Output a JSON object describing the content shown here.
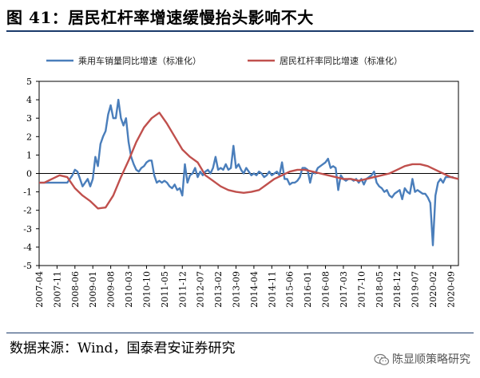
{
  "figure": {
    "title": "图 41：居民杠杆率增速缓慢抬头影响不大",
    "source": "数据来源：Wind，国泰君安证券研究",
    "watermark": "陈显顺策略研究",
    "wechat_icon": "wechat-icon"
  },
  "chart_data": {
    "type": "line",
    "title": "",
    "xlabel": "",
    "ylabel": "",
    "ylim": [
      -5,
      5
    ],
    "yticks": [
      5,
      4,
      3,
      2,
      1,
      0,
      -1,
      -2,
      -3,
      -4,
      -5
    ],
    "xlim": [
      "2007-04",
      "2020-12"
    ],
    "xticks": [
      "2007-04",
      "2007-11",
      "2008-06",
      "2009-01",
      "2009-08",
      "2010-03",
      "2010-10",
      "2011-05",
      "2011-12",
      "2012-07",
      "2013-02",
      "2013-09",
      "2014-04",
      "2014-11",
      "2015-06",
      "2016-01",
      "2016-08",
      "2017-03",
      "2017-10",
      "2018-05",
      "2018-12",
      "2019-07",
      "2020-02",
      "2020-09"
    ],
    "grid": false,
    "legend": "top",
    "series": [
      {
        "name": "乘用车销量同比增速（标准化）",
        "color": "#4a7ebb",
        "points": [
          [
            "2007-04",
            -0.5
          ],
          [
            "2007-08",
            -0.5
          ],
          [
            "2007-12",
            -0.5
          ],
          [
            "2008-03",
            -0.5
          ],
          [
            "2008-05",
            -0.1
          ],
          [
            "2008-06",
            0.2
          ],
          [
            "2008-07",
            0.1
          ],
          [
            "2008-08",
            -0.3
          ],
          [
            "2008-09",
            -0.7
          ],
          [
            "2008-10",
            -0.5
          ],
          [
            "2008-11",
            -0.3
          ],
          [
            "2008-12",
            -0.7
          ],
          [
            "2009-01",
            -0.3
          ],
          [
            "2009-02",
            0.9
          ],
          [
            "2009-03",
            0.4
          ],
          [
            "2009-04",
            1.6
          ],
          [
            "2009-05",
            2.0
          ],
          [
            "2009-06",
            2.3
          ],
          [
            "2009-07",
            3.2
          ],
          [
            "2009-08",
            3.7
          ],
          [
            "2009-09",
            3.0
          ],
          [
            "2009-10",
            3.0
          ],
          [
            "2009-11",
            4.0
          ],
          [
            "2009-12",
            3.0
          ],
          [
            "2010-01",
            2.6
          ],
          [
            "2010-02",
            3.0
          ],
          [
            "2010-03",
            1.7
          ],
          [
            "2010-04",
            0.9
          ],
          [
            "2010-05",
            0.5
          ],
          [
            "2010-06",
            0.2
          ],
          [
            "2010-07",
            0.1
          ],
          [
            "2010-08",
            0.3
          ],
          [
            "2010-09",
            0.4
          ],
          [
            "2010-10",
            0.6
          ],
          [
            "2010-11",
            0.7
          ],
          [
            "2010-12",
            0.7
          ],
          [
            "2011-01",
            -0.1
          ],
          [
            "2011-02",
            -0.5
          ],
          [
            "2011-03",
            -0.4
          ],
          [
            "2011-04",
            -0.5
          ],
          [
            "2011-05",
            -0.4
          ],
          [
            "2011-06",
            -0.5
          ],
          [
            "2011-07",
            -0.7
          ],
          [
            "2011-08",
            -0.8
          ],
          [
            "2011-09",
            -0.6
          ],
          [
            "2011-10",
            -0.9
          ],
          [
            "2011-11",
            -0.8
          ],
          [
            "2011-12",
            -1.2
          ],
          [
            "2012-01",
            0.5
          ],
          [
            "2012-02",
            -0.5
          ],
          [
            "2012-03",
            -0.1
          ],
          [
            "2012-04",
            0.0
          ],
          [
            "2012-05",
            0.3
          ],
          [
            "2012-06",
            -0.2
          ],
          [
            "2012-07",
            0.1
          ],
          [
            "2012-08",
            -0.1
          ],
          [
            "2012-09",
            0.1
          ],
          [
            "2012-10",
            0.2
          ],
          [
            "2012-11",
            0.0
          ],
          [
            "2012-12",
            0.3
          ],
          [
            "2013-01",
            0.9
          ],
          [
            "2013-02",
            0.2
          ],
          [
            "2013-03",
            0.3
          ],
          [
            "2013-04",
            0.2
          ],
          [
            "2013-05",
            0.5
          ],
          [
            "2013-06",
            0.2
          ],
          [
            "2013-07",
            0.3
          ],
          [
            "2013-08",
            1.5
          ],
          [
            "2013-09",
            0.3
          ],
          [
            "2013-10",
            0.5
          ],
          [
            "2013-11",
            0.2
          ],
          [
            "2013-12",
            0.0
          ],
          [
            "2014-01",
            0.3
          ],
          [
            "2014-02",
            0.1
          ],
          [
            "2014-03",
            -0.1
          ],
          [
            "2014-04",
            0.0
          ],
          [
            "2014-05",
            -0.1
          ],
          [
            "2014-06",
            0.1
          ],
          [
            "2014-07",
            0.0
          ],
          [
            "2014-08",
            -0.2
          ],
          [
            "2014-09",
            -0.1
          ],
          [
            "2014-10",
            0.1
          ],
          [
            "2014-11",
            -0.1
          ],
          [
            "2014-12",
            0.0
          ],
          [
            "2015-01",
            0.1
          ],
          [
            "2015-02",
            -0.1
          ],
          [
            "2015-03",
            0.6
          ],
          [
            "2015-04",
            -0.3
          ],
          [
            "2015-05",
            -0.3
          ],
          [
            "2015-06",
            -0.6
          ],
          [
            "2015-07",
            -0.5
          ],
          [
            "2015-08",
            -0.5
          ],
          [
            "2015-09",
            -0.4
          ],
          [
            "2015-10",
            -0.2
          ],
          [
            "2015-11",
            0.3
          ],
          [
            "2015-12",
            0.3
          ],
          [
            "2016-01",
            0.2
          ],
          [
            "2016-02",
            -0.5
          ],
          [
            "2016-03",
            0.1
          ],
          [
            "2016-04",
            0.0
          ],
          [
            "2016-05",
            0.3
          ],
          [
            "2016-06",
            0.4
          ],
          [
            "2016-07",
            0.5
          ],
          [
            "2016-08",
            0.6
          ],
          [
            "2016-09",
            0.8
          ],
          [
            "2016-10",
            0.3
          ],
          [
            "2016-11",
            0.4
          ],
          [
            "2016-12",
            0.3
          ],
          [
            "2017-01",
            -0.9
          ],
          [
            "2017-02",
            -0.1
          ],
          [
            "2017-03",
            -0.3
          ],
          [
            "2017-04",
            -0.4
          ],
          [
            "2017-05",
            -0.3
          ],
          [
            "2017-06",
            -0.3
          ],
          [
            "2017-07",
            -0.4
          ],
          [
            "2017-08",
            -0.3
          ],
          [
            "2017-09",
            -0.5
          ],
          [
            "2017-10",
            -0.3
          ],
          [
            "2017-11",
            -0.6
          ],
          [
            "2017-12",
            -0.3
          ],
          [
            "2018-01",
            -0.2
          ],
          [
            "2018-02",
            -0.1
          ],
          [
            "2018-03",
            0.1
          ],
          [
            "2018-04",
            -0.5
          ],
          [
            "2018-05",
            -0.7
          ],
          [
            "2018-06",
            -0.8
          ],
          [
            "2018-07",
            -1.0
          ],
          [
            "2018-08",
            -0.9
          ],
          [
            "2018-09",
            -1.2
          ],
          [
            "2018-10",
            -1.3
          ],
          [
            "2018-11",
            -1.1
          ],
          [
            "2018-12",
            -1.0
          ],
          [
            "2019-01",
            -0.9
          ],
          [
            "2019-02",
            -1.4
          ],
          [
            "2019-03",
            -0.8
          ],
          [
            "2019-04",
            -1.0
          ],
          [
            "2019-05",
            -1.1
          ],
          [
            "2019-06",
            -0.3
          ],
          [
            "2019-07",
            -1.0
          ],
          [
            "2019-08",
            -0.9
          ],
          [
            "2019-09",
            -1.0
          ],
          [
            "2019-10",
            -1.1
          ],
          [
            "2019-11",
            -1.1
          ],
          [
            "2019-12",
            -1.3
          ],
          [
            "2020-01",
            -1.6
          ],
          [
            "2020-02",
            -3.9
          ],
          [
            "2020-03",
            -1.2
          ],
          [
            "2020-04",
            -0.5
          ],
          [
            "2020-05",
            -0.3
          ],
          [
            "2020-06",
            -0.5
          ],
          [
            "2020-07",
            -0.2
          ],
          [
            "2020-08",
            -0.2
          ],
          [
            "2020-09",
            -0.2
          ],
          [
            "2020-10",
            -0.2
          ]
        ]
      },
      {
        "name": "居民杠杆率同比增速（标准化）",
        "color": "#c0504d",
        "points": [
          [
            "2007-04",
            -0.5
          ],
          [
            "2007-06",
            -0.5
          ],
          [
            "2007-09",
            -0.3
          ],
          [
            "2007-12",
            -0.1
          ],
          [
            "2008-03",
            -0.2
          ],
          [
            "2008-06",
            -0.8
          ],
          [
            "2008-09",
            -1.2
          ],
          [
            "2008-12",
            -1.5
          ],
          [
            "2009-03",
            -1.9
          ],
          [
            "2009-06",
            -1.85
          ],
          [
            "2009-09",
            -1.2
          ],
          [
            "2009-12",
            -0.2
          ],
          [
            "2010-03",
            0.7
          ],
          [
            "2010-06",
            1.7
          ],
          [
            "2010-09",
            2.5
          ],
          [
            "2010-12",
            3.0
          ],
          [
            "2011-03",
            3.3
          ],
          [
            "2011-06",
            2.7
          ],
          [
            "2011-09",
            2.0
          ],
          [
            "2011-12",
            1.3
          ],
          [
            "2012-03",
            0.9
          ],
          [
            "2012-06",
            0.6
          ],
          [
            "2012-09",
            -0.1
          ],
          [
            "2012-12",
            -0.4
          ],
          [
            "2013-03",
            -0.7
          ],
          [
            "2013-06",
            -0.9
          ],
          [
            "2013-09",
            -1.0
          ],
          [
            "2013-12",
            -1.05
          ],
          [
            "2014-03",
            -1.0
          ],
          [
            "2014-06",
            -0.9
          ],
          [
            "2014-09",
            -0.6
          ],
          [
            "2014-12",
            -0.3
          ],
          [
            "2015-03",
            -0.1
          ],
          [
            "2015-06",
            0.1
          ],
          [
            "2015-09",
            0.2
          ],
          [
            "2015-12",
            0.2
          ],
          [
            "2016-03",
            0.1
          ],
          [
            "2016-06",
            0.0
          ],
          [
            "2016-09",
            -0.1
          ],
          [
            "2016-12",
            -0.2
          ],
          [
            "2017-03",
            -0.3
          ],
          [
            "2017-06",
            -0.3
          ],
          [
            "2017-09",
            -0.4
          ],
          [
            "2017-12",
            -0.3
          ],
          [
            "2018-03",
            -0.2
          ],
          [
            "2018-06",
            -0.1
          ],
          [
            "2018-09",
            0.0
          ],
          [
            "2018-12",
            0.2
          ],
          [
            "2019-03",
            0.4
          ],
          [
            "2019-06",
            0.5
          ],
          [
            "2019-09",
            0.5
          ],
          [
            "2019-12",
            0.4
          ],
          [
            "2020-03",
            0.2
          ],
          [
            "2020-06",
            0.0
          ],
          [
            "2020-09",
            -0.2
          ],
          [
            "2020-12",
            -0.3
          ]
        ]
      }
    ]
  }
}
